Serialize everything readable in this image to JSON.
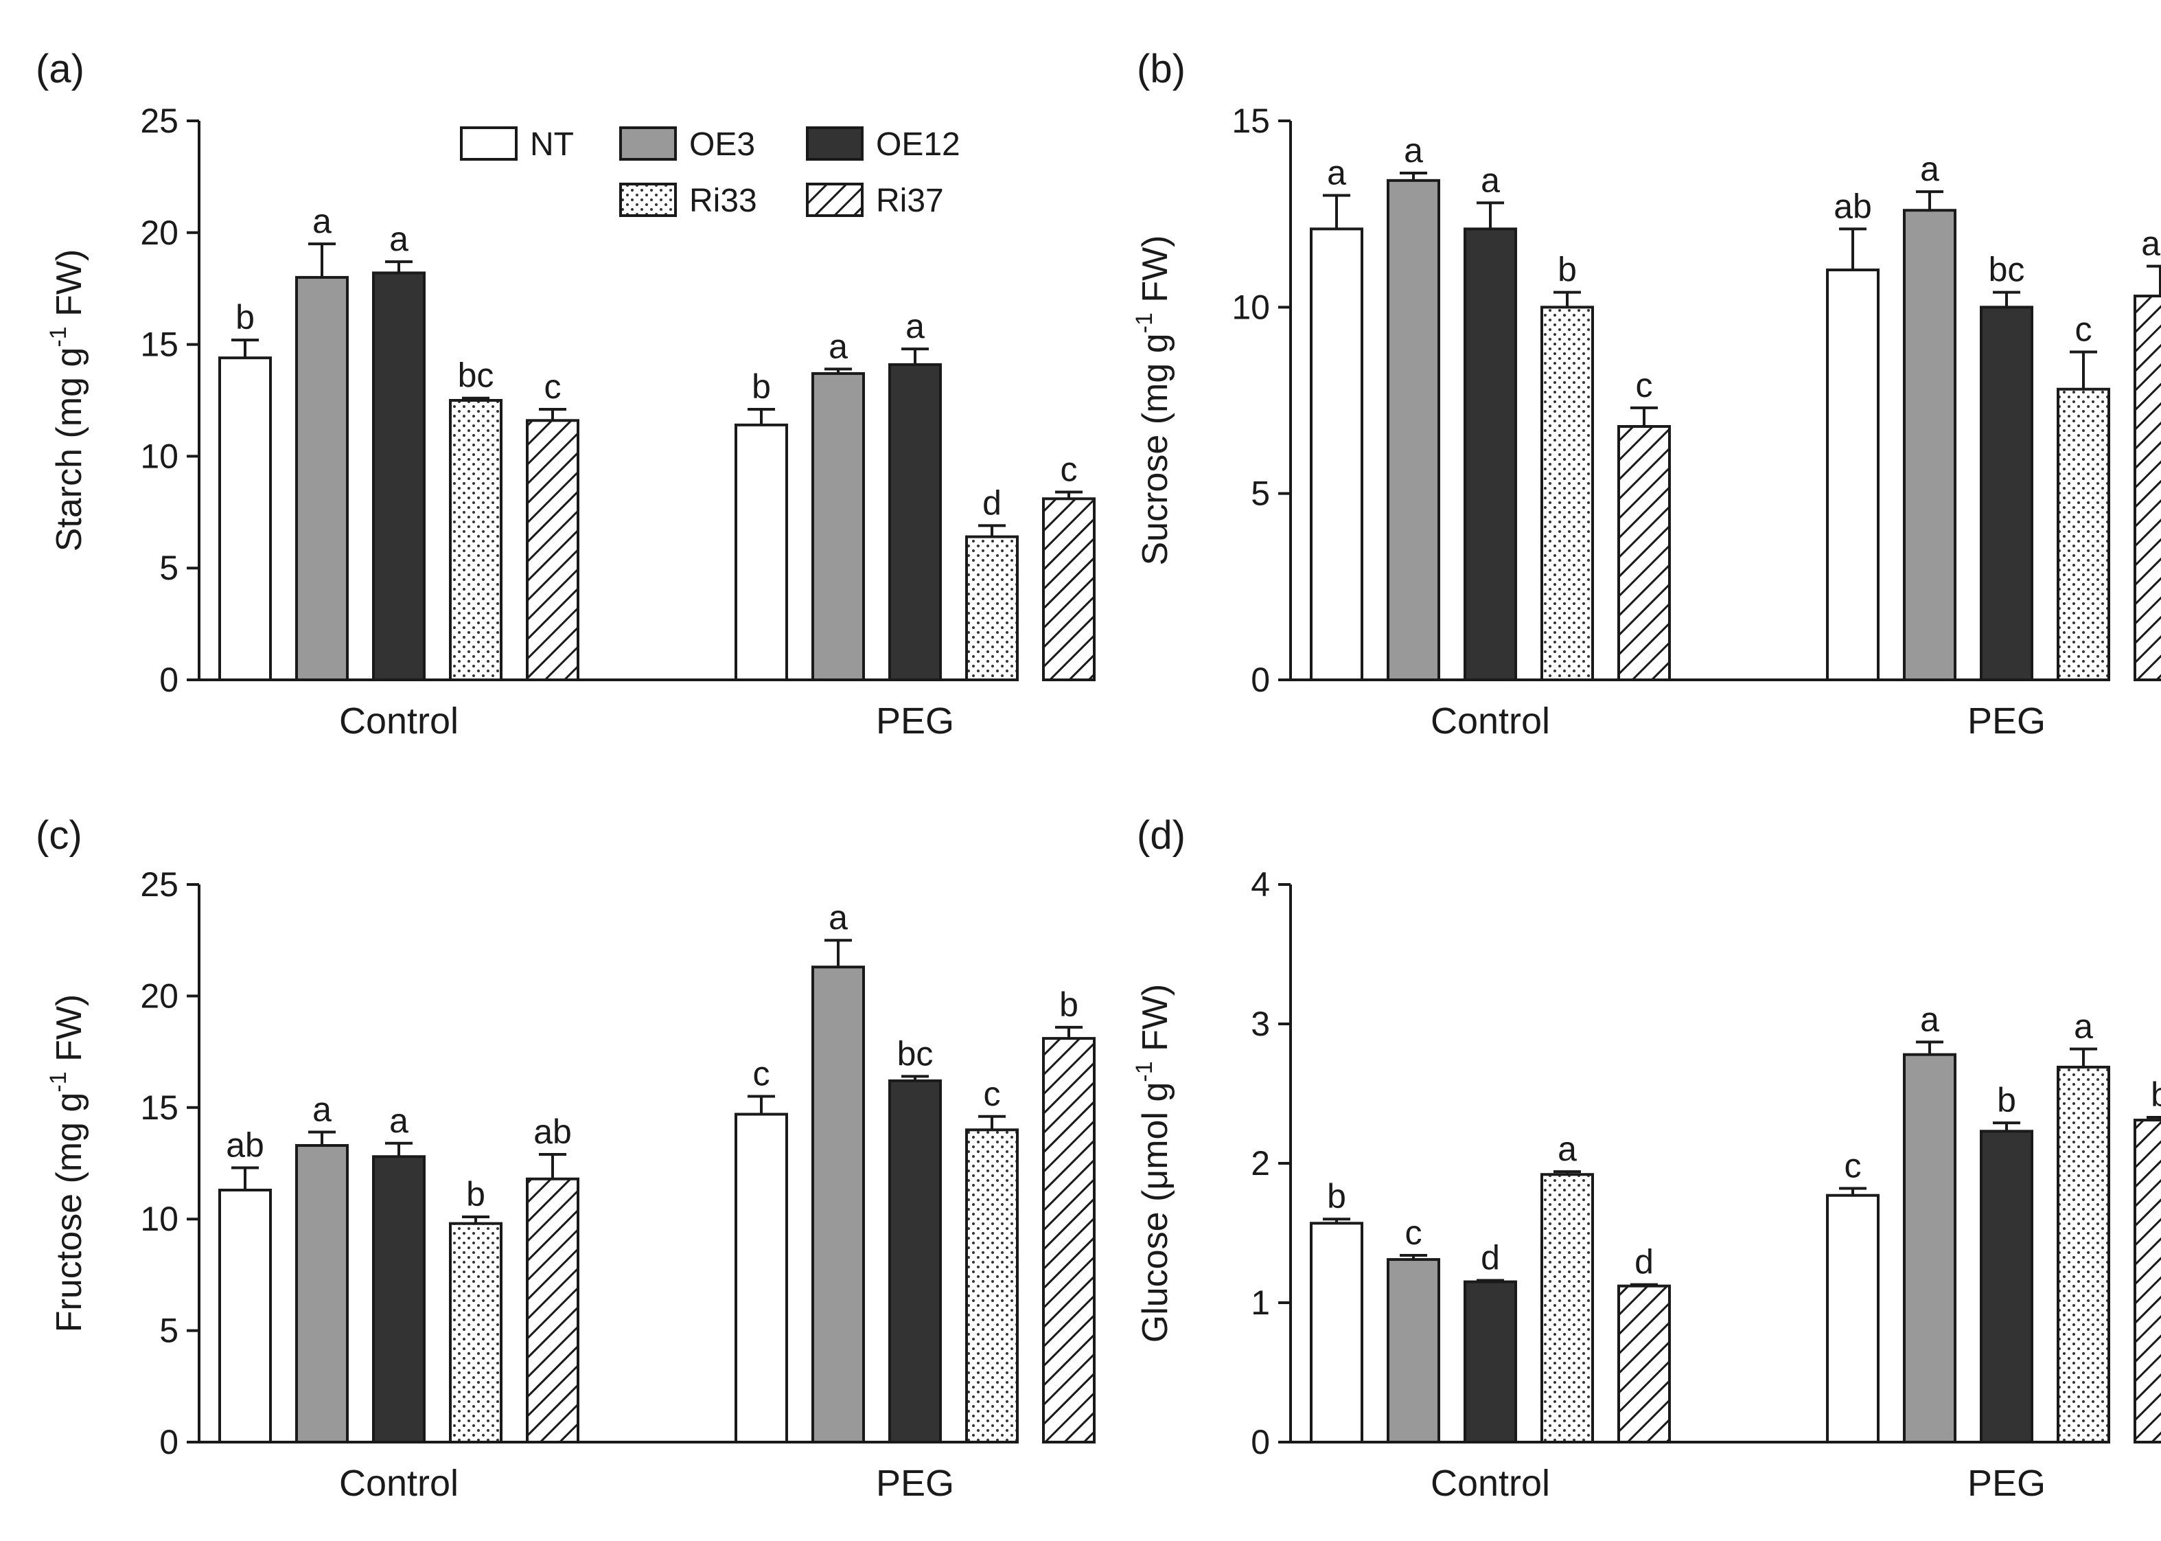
{
  "legend": {
    "entries": [
      {
        "key": "NT",
        "label": "NT"
      },
      {
        "key": "OE3",
        "label": "OE3"
      },
      {
        "key": "OE12",
        "label": "OE12"
      },
      {
        "key": "Ri33",
        "label": "Ri33"
      },
      {
        "key": "Ri37",
        "label": "Ri37"
      }
    ]
  },
  "series_styles": {
    "NT": {
      "fill": "#ffffff",
      "pattern": "none"
    },
    "OE3": {
      "fill": "#999999",
      "pattern": "none"
    },
    "OE12": {
      "fill": "#333333",
      "pattern": "none"
    },
    "Ri33": {
      "fill": "#ffffff",
      "pattern": "dots"
    },
    "Ri37": {
      "fill": "#ffffff",
      "pattern": "hatch"
    }
  },
  "chart_data": [
    {
      "panel": "(a)",
      "type": "bar",
      "ylabel_main": "Starch (mg g",
      "ylabel_sup": "-1",
      "ylabel_tail": " FW)",
      "ylim": [
        0,
        25
      ],
      "yticks": [
        "0",
        "5",
        "10",
        "15",
        "20",
        "25"
      ],
      "categories": [
        "Control",
        "PEG"
      ],
      "series": [
        {
          "name": "NT",
          "values": [
            14.4,
            11.4
          ],
          "errors": [
            0.8,
            0.7
          ],
          "letters": [
            "b",
            "b"
          ]
        },
        {
          "name": "OE3",
          "values": [
            18.0,
            13.7
          ],
          "errors": [
            1.5,
            0.2
          ],
          "letters": [
            "a",
            "a"
          ]
        },
        {
          "name": "OE12",
          "values": [
            18.2,
            14.1
          ],
          "errors": [
            0.5,
            0.7
          ],
          "letters": [
            "a",
            "a"
          ]
        },
        {
          "name": "Ri33",
          "values": [
            12.5,
            6.4
          ],
          "errors": [
            0.1,
            0.5
          ],
          "letters": [
            "bc",
            "d"
          ]
        },
        {
          "name": "Ri37",
          "values": [
            11.6,
            8.1
          ],
          "errors": [
            0.5,
            0.3
          ],
          "letters": [
            "c",
            "c"
          ]
        }
      ]
    },
    {
      "panel": "(b)",
      "type": "bar",
      "ylabel_main": "Sucrose (mg g",
      "ylabel_sup": "-1",
      "ylabel_tail": " FW)",
      "ylim": [
        0,
        15
      ],
      "yticks": [
        "0",
        "5",
        "10",
        "15"
      ],
      "categories": [
        "Control",
        "PEG"
      ],
      "series": [
        {
          "name": "NT",
          "values": [
            12.1,
            11.0
          ],
          "errors": [
            0.9,
            1.1
          ],
          "letters": [
            "a",
            "ab"
          ]
        },
        {
          "name": "OE3",
          "values": [
            13.4,
            12.6
          ],
          "errors": [
            0.2,
            0.5
          ],
          "letters": [
            "a",
            "a"
          ]
        },
        {
          "name": "OE12",
          "values": [
            12.1,
            10.0
          ],
          "errors": [
            0.7,
            0.4
          ],
          "letters": [
            "a",
            "bc"
          ]
        },
        {
          "name": "Ri33",
          "values": [
            10.0,
            7.8
          ],
          "errors": [
            0.4,
            1.0
          ],
          "letters": [
            "b",
            "c"
          ]
        },
        {
          "name": "Ri37",
          "values": [
            6.8,
            10.3
          ],
          "errors": [
            0.5,
            0.8
          ],
          "letters": [
            "c",
            "ab"
          ]
        }
      ]
    },
    {
      "panel": "(c)",
      "type": "bar",
      "ylabel_main": "Fructose (mg g",
      "ylabel_sup": "-1",
      "ylabel_tail": " FW)",
      "ylim": [
        0,
        25
      ],
      "yticks": [
        "0",
        "5",
        "10",
        "15",
        "20",
        "25"
      ],
      "categories": [
        "Control",
        "PEG"
      ],
      "series": [
        {
          "name": "NT",
          "values": [
            11.3,
            14.7
          ],
          "errors": [
            1.0,
            0.8
          ],
          "letters": [
            "ab",
            "c"
          ]
        },
        {
          "name": "OE3",
          "values": [
            13.3,
            21.3
          ],
          "errors": [
            0.6,
            1.2
          ],
          "letters": [
            "a",
            "a"
          ]
        },
        {
          "name": "OE12",
          "values": [
            12.8,
            16.2
          ],
          "errors": [
            0.6,
            0.2
          ],
          "letters": [
            "a",
            "bc"
          ]
        },
        {
          "name": "Ri33",
          "values": [
            9.8,
            14.0
          ],
          "errors": [
            0.3,
            0.6
          ],
          "letters": [
            "b",
            "c"
          ]
        },
        {
          "name": "Ri37",
          "values": [
            11.8,
            18.1
          ],
          "errors": [
            1.1,
            0.5
          ],
          "letters": [
            "ab",
            "b"
          ]
        }
      ]
    },
    {
      "panel": "(d)",
      "type": "bar",
      "ylabel_main": "Glucose (μmol g",
      "ylabel_sup": "-1",
      "ylabel_tail": " FW)",
      "ylim": [
        0,
        4
      ],
      "yticks": [
        "0",
        "1",
        "2",
        "3",
        "4"
      ],
      "categories": [
        "Control",
        "PEG"
      ],
      "series": [
        {
          "name": "NT",
          "values": [
            1.57,
            1.77
          ],
          "errors": [
            0.03,
            0.05
          ],
          "letters": [
            "b",
            "c"
          ]
        },
        {
          "name": "OE3",
          "values": [
            1.31,
            2.78
          ],
          "errors": [
            0.03,
            0.09
          ],
          "letters": [
            "c",
            "a"
          ]
        },
        {
          "name": "OE12",
          "values": [
            1.15,
            2.23
          ],
          "errors": [
            0.01,
            0.06
          ],
          "letters": [
            "d",
            "b"
          ]
        },
        {
          "name": "Ri33",
          "values": [
            1.92,
            2.69
          ],
          "errors": [
            0.02,
            0.13
          ],
          "letters": [
            "a",
            "a"
          ]
        },
        {
          "name": "Ri37",
          "values": [
            1.12,
            2.31
          ],
          "errors": [
            0.01,
            0.02
          ],
          "letters": [
            "d",
            "b"
          ]
        }
      ]
    }
  ]
}
